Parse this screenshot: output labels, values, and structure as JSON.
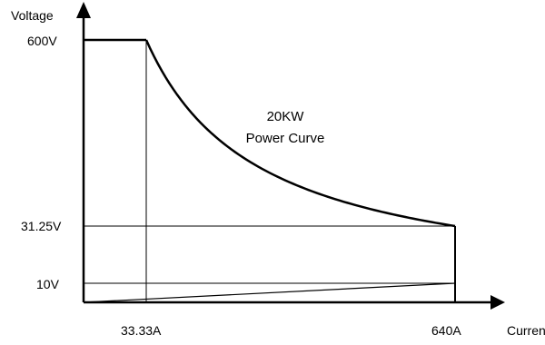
{
  "chart_data": {
    "type": "line",
    "title": "",
    "xlabel": "Current",
    "ylabel": "Voltage",
    "annotation": [
      "20KW",
      "Power Curve"
    ],
    "x_ticks": [
      {
        "value": 33.33,
        "label": "33.33A"
      },
      {
        "value": 640,
        "label": "640A"
      }
    ],
    "y_ticks": [
      {
        "value": 600,
        "label": "600V"
      },
      {
        "value": 31.25,
        "label": "31.25V"
      },
      {
        "value": 10,
        "label": "10V"
      }
    ],
    "series": [
      {
        "name": "",
        "description_points": [
          {
            "x": 0,
            "y": 600
          },
          {
            "x": 33.33,
            "y": 600
          },
          {
            "x": 640,
            "y": 31.25
          },
          {
            "x": 640,
            "y": 10
          }
        ],
        "power_watts": 20000
      }
    ]
  }
}
